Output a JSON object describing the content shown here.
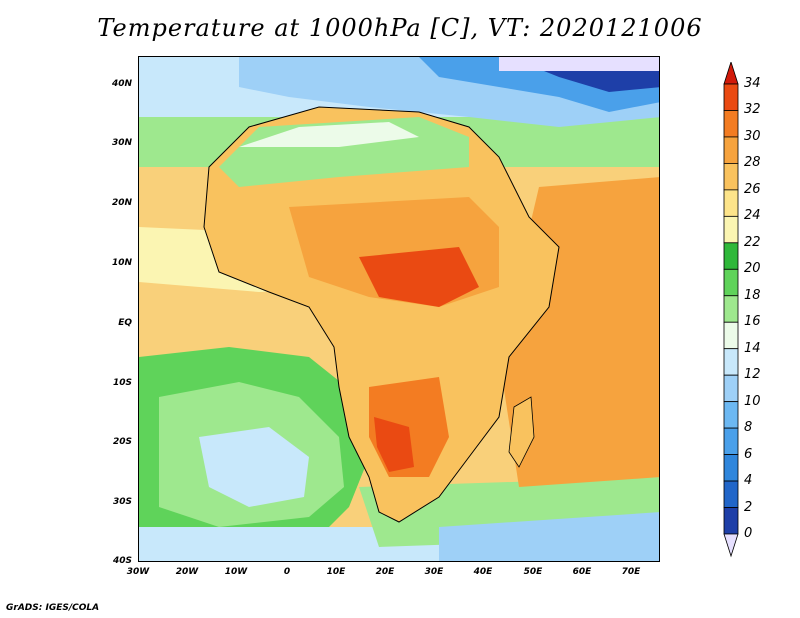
{
  "title": "Temperature at 1000hPa [C], VT: 2020121006",
  "footer": "GrADS: IGES/COLA",
  "map": {
    "lat_range": [
      -40,
      45
    ],
    "lon_range": [
      -30,
      77
    ],
    "lat_labels": [
      "40N",
      "30N",
      "20N",
      "10N",
      "EQ",
      "10S",
      "20S",
      "30S",
      "40S"
    ],
    "lon_labels": [
      "30W",
      "20W",
      "10W",
      "0",
      "10E",
      "20E",
      "30E",
      "40E",
      "50E",
      "60E",
      "70E"
    ]
  },
  "legend": {
    "levels": [
      "0",
      "2",
      "4",
      "6",
      "8",
      "10",
      "12",
      "14",
      "16",
      "18",
      "20",
      "22",
      "24",
      "26",
      "28",
      "30",
      "32",
      "34"
    ],
    "colors": [
      "#1a1a8c",
      "#1e3fa8",
      "#2166c9",
      "#2f86dc",
      "#4aa0ea",
      "#6cb8f2",
      "#9ed0f7",
      "#c8e8fb",
      "#ecfbe9",
      "#9ee88e",
      "#5fd35a",
      "#2fb83a",
      "#fbf5b2",
      "#fde48a",
      "#f9c25e",
      "#f6a33e",
      "#f37c22",
      "#ea4a12",
      "#d11a0a"
    ],
    "below_color": "#e6e0ff",
    "above_color": "#d11a0a"
  }
}
